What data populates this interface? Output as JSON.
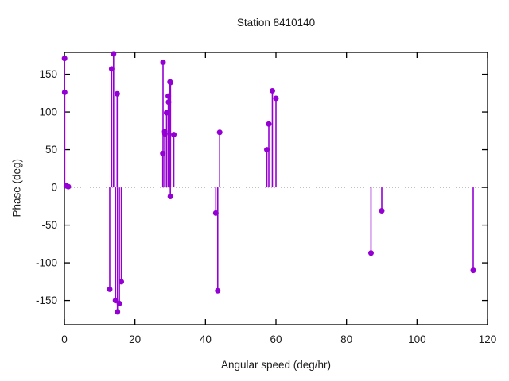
{
  "figure": {
    "background": "#ffffff"
  },
  "chart_data": {
    "type": "scatter",
    "style": "stem-impulses",
    "title": "Station 8410140",
    "xlabel": "Angular speed (deg/hr)",
    "ylabel": "Phase (deg)",
    "xlim": [
      0,
      120
    ],
    "ylim": [
      -182,
      179
    ],
    "xticks": [
      0,
      20,
      40,
      60,
      80,
      100,
      120
    ],
    "yticks": [
      -150,
      -100,
      -50,
      0,
      50,
      100,
      150
    ],
    "grid": false,
    "legend": false,
    "baseline": 0,
    "baseline_style": "dotted",
    "accent_color": "#9400D3",
    "axis_color": "#000000",
    "text_color": "#1a1a1a",
    "baseline_color": "#9e9e9e",
    "marker": "circle",
    "points": [
      [
        0.04,
        171
      ],
      [
        0.08,
        126
      ],
      [
        0.54,
        2
      ],
      [
        1.1,
        1
      ],
      [
        12.85,
        -135
      ],
      [
        13.4,
        157
      ],
      [
        13.94,
        177
      ],
      [
        14.49,
        -150
      ],
      [
        14.96,
        124
      ],
      [
        15.04,
        -165
      ],
      [
        15.58,
        -154
      ],
      [
        16.14,
        -125
      ],
      [
        27.9,
        45
      ],
      [
        27.97,
        166
      ],
      [
        28.44,
        74
      ],
      [
        28.51,
        71
      ],
      [
        28.98,
        99
      ],
      [
        29.46,
        121
      ],
      [
        29.53,
        113
      ],
      [
        29.96,
        140
      ],
      [
        30.04,
        -12
      ],
      [
        30.08,
        139
      ],
      [
        31.02,
        70
      ],
      [
        42.93,
        -34
      ],
      [
        43.48,
        -137
      ],
      [
        44.03,
        73
      ],
      [
        57.42,
        50
      ],
      [
        57.97,
        84
      ],
      [
        58.98,
        128
      ],
      [
        60.0,
        118
      ],
      [
        86.95,
        -87
      ],
      [
        90.0,
        -31
      ],
      [
        115.94,
        -110
      ]
    ]
  }
}
